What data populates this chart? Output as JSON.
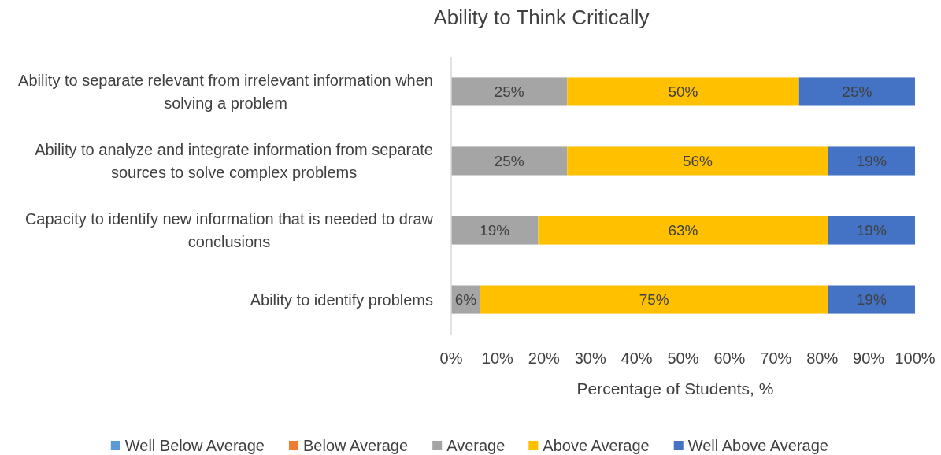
{
  "chart_data": {
    "type": "bar",
    "orientation": "horizontal",
    "stacked": true,
    "title": "Ability to Think Critically",
    "xlabel": "Percentage of Students, %",
    "categories": [
      "Ability to separate relevant from irrelevant information when solving a problem",
      "Ability to analyze and integrate information from separate sources to solve complex problems",
      "Capacity to identify new information that is needed to draw conclusions",
      "Ability to identify problems"
    ],
    "series": [
      {
        "name": "Well Below Average",
        "color": "#5b9bd5",
        "values": [
          0,
          0,
          0,
          0
        ]
      },
      {
        "name": "Below Average",
        "color": "#ed7d31",
        "values": [
          0,
          0,
          0,
          0
        ]
      },
      {
        "name": "Average",
        "color": "#a5a5a5",
        "values": [
          25,
          25,
          18.75,
          6.25
        ],
        "value_labels": [
          "25%",
          "25%",
          "19%",
          "6%"
        ]
      },
      {
        "name": "Above Average",
        "color": "#ffc000",
        "values": [
          50,
          56.25,
          62.5,
          75
        ],
        "value_labels": [
          "50%",
          "56%",
          "63%",
          "75%"
        ]
      },
      {
        "name": "Well Above Average",
        "color": "#4472c4",
        "values": [
          25,
          18.75,
          18.75,
          18.75
        ],
        "value_labels": [
          "25%",
          "19%",
          "19%",
          "19%"
        ]
      }
    ],
    "xlim": [
      0,
      100
    ],
    "xticks": [
      {
        "value": 0,
        "label": "0%"
      },
      {
        "value": 10,
        "label": "10%"
      },
      {
        "value": 20,
        "label": "20%"
      },
      {
        "value": 30,
        "label": "30%"
      },
      {
        "value": 40,
        "label": "40%"
      },
      {
        "value": 50,
        "label": "50%"
      },
      {
        "value": 60,
        "label": "60%"
      },
      {
        "value": 70,
        "label": "70%"
      },
      {
        "value": 80,
        "label": "80%"
      },
      {
        "value": 90,
        "label": "90%"
      },
      {
        "value": 100,
        "label": "100%"
      }
    ],
    "legend": "bottom",
    "grid": false
  }
}
